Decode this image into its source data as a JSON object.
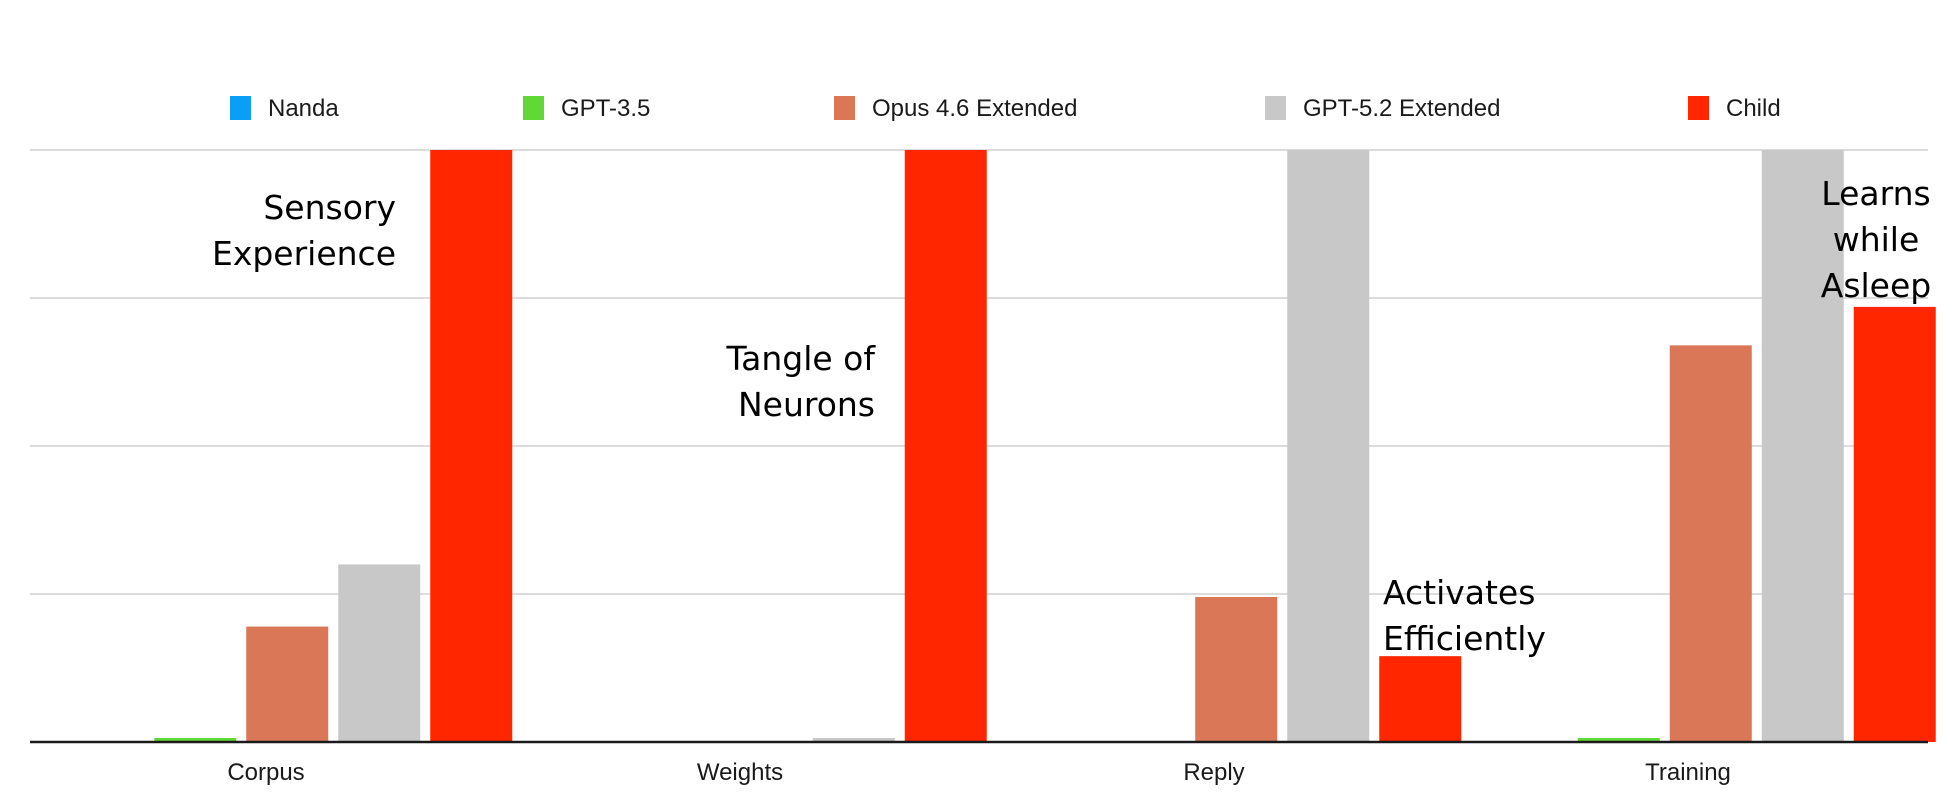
{
  "chart_data": {
    "type": "bar",
    "title": "",
    "xlabel": "",
    "ylabel": "",
    "ylim": [
      0,
      100
    ],
    "grid": true,
    "legend_position": "top",
    "categories": [
      "Corpus",
      "Weights",
      "Reply",
      "Training"
    ],
    "series": [
      {
        "name": "Nanda",
        "color": "#0A9FF5",
        "values": [
          0,
          0,
          0,
          0
        ]
      },
      {
        "name": "GPT-3.5",
        "color": "#61D836",
        "values": [
          0.5,
          0,
          0,
          0.5
        ]
      },
      {
        "name": "Opus 4.6 Extended",
        "color": "#D97757",
        "values": [
          19.5,
          0,
          24.5,
          67
        ]
      },
      {
        "name": "GPT-5.2 Extended",
        "color": "#C8C8C8",
        "values": [
          30,
          0.5,
          100,
          100
        ]
      },
      {
        "name": "Child",
        "color": "#FF2600",
        "values": [
          100,
          100,
          14.5,
          73.5
        ]
      }
    ],
    "annotations": [
      {
        "category": "Corpus",
        "lines": [
          "Sensory",
          "Experience"
        ]
      },
      {
        "category": "Weights",
        "lines": [
          "Tangle of",
          "Neurons"
        ]
      },
      {
        "category": "Reply",
        "lines": [
          "Activates",
          "Efficiently"
        ]
      },
      {
        "category": "Training",
        "lines": [
          "Learns",
          "while",
          "Asleep"
        ]
      }
    ]
  }
}
